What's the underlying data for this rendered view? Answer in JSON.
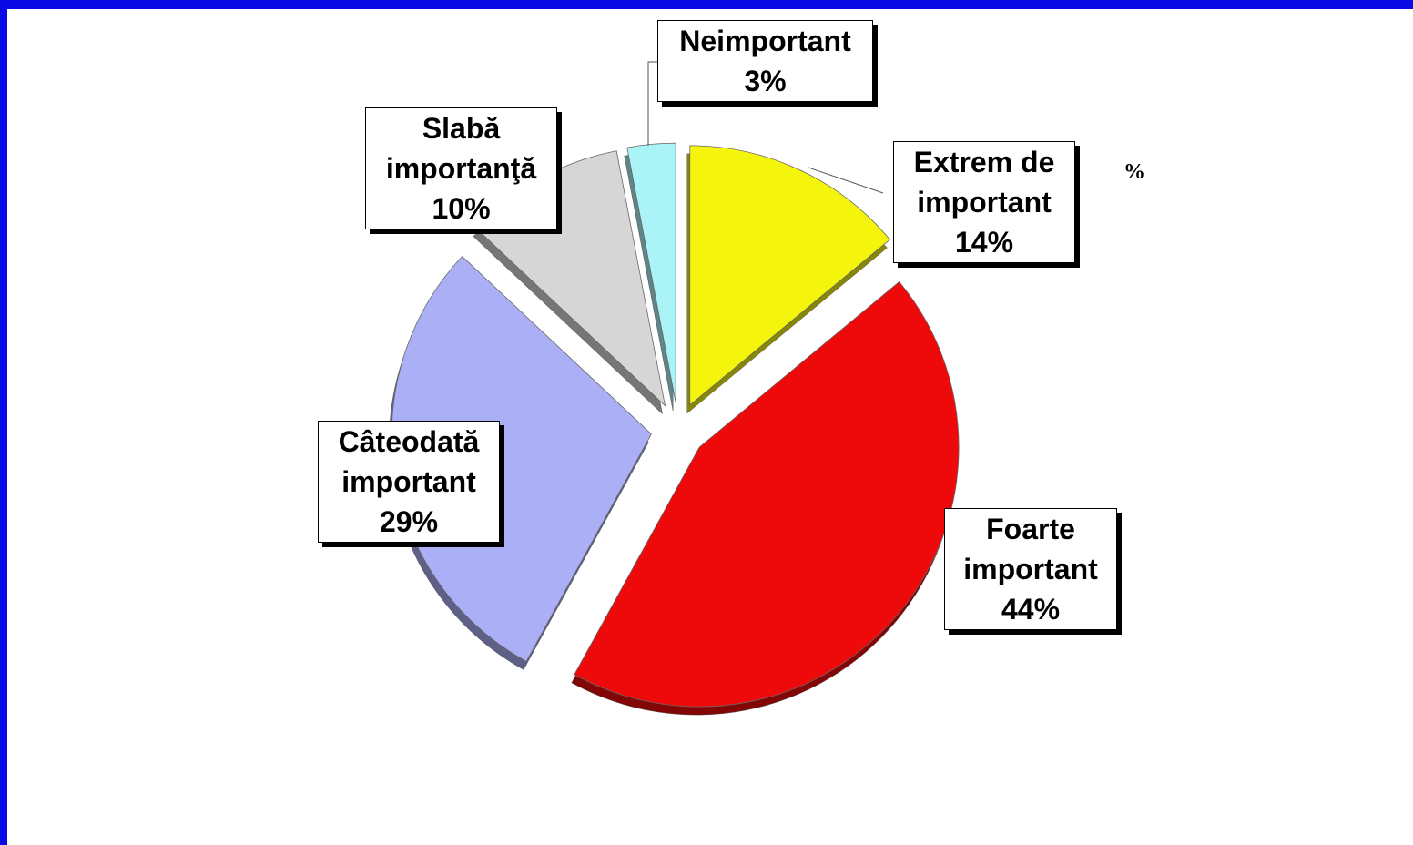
{
  "chart_data": {
    "type": "pie",
    "categories": [
      "Extrem de important",
      "Foarte important",
      "Câteodată important",
      "Slabă importanţă",
      "Neimportant"
    ],
    "values": [
      14,
      44,
      29,
      10,
      3
    ],
    "value_labels": [
      "14%",
      "44%",
      "29%",
      "10%",
      "3%"
    ],
    "colors": [
      "#f4f40c",
      "#ee0a0a",
      "#abaff5",
      "#d6d6d6",
      "#aaf4f8"
    ],
    "annotation": "%"
  }
}
